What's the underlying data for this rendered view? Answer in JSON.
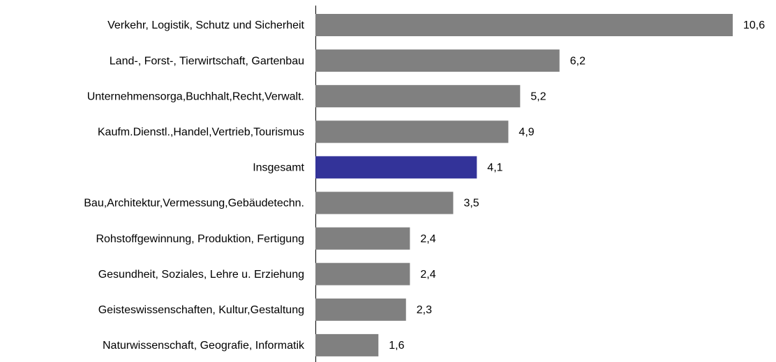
{
  "chart_data": {
    "type": "hbar",
    "categories": [
      "Verkehr, Logistik, Schutz und Sicherheit",
      "Land-, Forst-, Tierwirtschaft, Gartenbau",
      "Unternehmensorga,Buchhalt,Recht,Verwalt.",
      "Kaufm.Dienstl.,Handel,Vertrieb,Tourismus",
      "Insgesamt",
      "Bau,Architektur,Vermessung,Gebäudetechn.",
      "Rohstoffgewinnung, Produktion, Fertigung",
      "Gesundheit, Soziales, Lehre u. Erziehung",
      "Geisteswissenschaften, Kultur,Gestaltung",
      "Naturwissenschaft, Geografie, Informatik"
    ],
    "values": [
      10.6,
      6.2,
      5.2,
      4.9,
      4.1,
      3.5,
      2.4,
      2.4,
      2.3,
      1.6
    ],
    "value_labels": [
      "10,6",
      "6,2",
      "5,2",
      "4,9",
      "4,1",
      "3,5",
      "2,4",
      "2,4",
      "2,3",
      "1,6"
    ],
    "colors": [
      "#808080",
      "#808080",
      "#808080",
      "#808080",
      "#333399",
      "#808080",
      "#808080",
      "#808080",
      "#808080",
      "#808080"
    ]
  }
}
